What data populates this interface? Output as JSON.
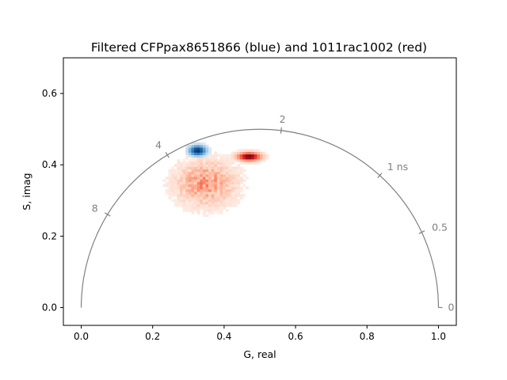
{
  "chart_data": {
    "type": "heatmap",
    "title": "Filtered CFPpax8651866 (blue) and 1011rac1002 (red)",
    "xlabel": "G, real",
    "ylabel": "S, imag",
    "xlim": [
      -0.05,
      1.05
    ],
    "ylim": [
      -0.05,
      0.7
    ],
    "xticks": [
      0.0,
      0.2,
      0.4,
      0.6,
      0.8,
      1.0
    ],
    "yticks": [
      0.0,
      0.2,
      0.4,
      0.6
    ],
    "xtick_labels": [
      "0.0",
      "0.2",
      "0.4",
      "0.6",
      "0.8",
      "1.0"
    ],
    "ytick_labels": [
      "0.0",
      "0.2",
      "0.4",
      "0.6"
    ],
    "grid": false,
    "universal_circle": {
      "center": [
        0.5,
        0.0
      ],
      "radius": 0.5,
      "color": "#808080",
      "lifetime_ticks": [
        {
          "label": "0",
          "g": 1.0,
          "s": 0.0
        },
        {
          "label": "0.5",
          "g": 0.9533,
          "s": 0.211
        },
        {
          "label": "1 ns",
          "g": 0.8358,
          "s": 0.3703
        },
        {
          "label": "2",
          "g": 0.5597,
          "s": 0.4964
        },
        {
          "label": "4",
          "g": 0.241,
          "s": 0.4277
        },
        {
          "label": "8",
          "g": 0.0735,
          "s": 0.261
        }
      ]
    },
    "series": [
      {
        "name": "CFPpax8651866",
        "colormap": "blue",
        "color": "#08306b",
        "peak": [
          0.322,
          0.437
        ],
        "spread": [
          0.018,
          0.011
        ]
      },
      {
        "name": "1011rac1002",
        "colormap": "red",
        "color": "#67000d",
        "peak": [
          0.466,
          0.42
        ],
        "spread": [
          0.022,
          0.008
        ],
        "diffuse_center": [
          0.345,
          0.345
        ],
        "diffuse_spread": [
          0.055,
          0.042
        ]
      }
    ]
  }
}
